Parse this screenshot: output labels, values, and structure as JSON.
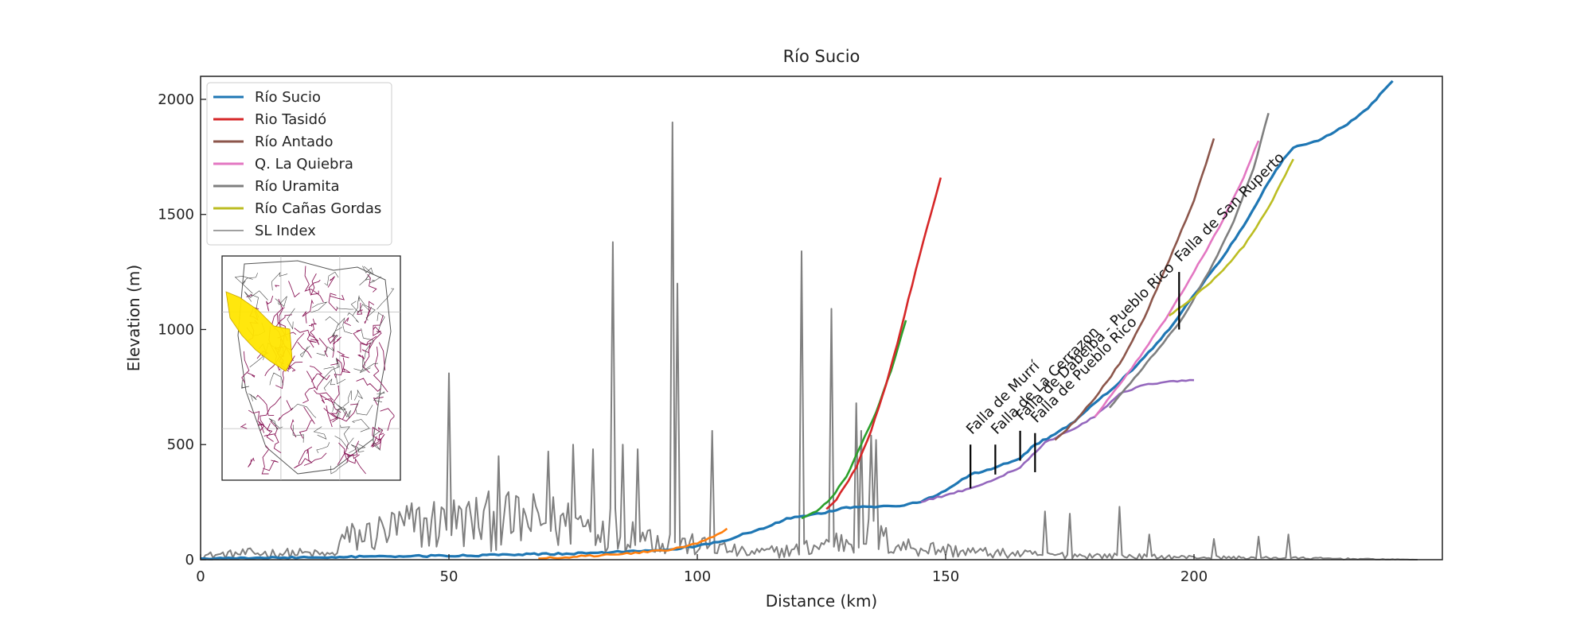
{
  "chart_data": {
    "type": "line",
    "title": "Río Sucio",
    "xlabel": "Distance (km)",
    "ylabel": "Elevation (m)",
    "xlim": [
      0,
      250
    ],
    "ylim": [
      0,
      2100
    ],
    "xticks": [
      0,
      50,
      100,
      150,
      200
    ],
    "yticks": [
      0,
      500,
      1000,
      1500,
      2000
    ],
    "xtick_labels": [
      "0",
      "50",
      "100",
      "150",
      "200"
    ],
    "ytick_labels": [
      "0",
      "500",
      "1000",
      "1500",
      "2000"
    ],
    "legend_position": "top-left",
    "grid": false,
    "legend": [
      {
        "label": "Río Sucio",
        "color": "#1f77b4"
      },
      {
        "label": "Rio Tasidó",
        "color": "#d62728"
      },
      {
        "label": "Río Antado",
        "color": "#8c564b"
      },
      {
        "label": "Q. La Quiebra",
        "color": "#e377c2"
      },
      {
        "label": "Río Uramita",
        "color": "#7f7f7f"
      },
      {
        "label": "Río Cañas Gordas",
        "color": "#bcbd22"
      },
      {
        "label": "SL Index",
        "color": "#808080"
      }
    ],
    "series": [
      {
        "name": "Río Sucio",
        "color": "#1f77b4",
        "width": 3.2,
        "x": [
          0,
          20,
          40,
          60,
          80,
          95,
          100,
          105,
          110,
          115,
          118,
          122,
          125,
          128,
          130,
          135,
          140,
          145,
          150,
          155,
          160,
          165,
          168,
          172,
          176,
          180,
          185,
          190,
          195,
          200,
          205,
          210,
          215,
          218,
          220,
          225,
          230,
          235,
          240
        ],
        "y": [
          5,
          10,
          15,
          20,
          30,
          45,
          60,
          80,
          115,
          150,
          180,
          190,
          200,
          215,
          228,
          230,
          232,
          250,
          300,
          370,
          400,
          440,
          500,
          545,
          600,
          680,
          770,
          880,
          1000,
          1150,
          1290,
          1450,
          1640,
          1740,
          1790,
          1820,
          1880,
          1960,
          2080
        ]
      },
      {
        "name": "orange tributary",
        "color": "#ff7f0e",
        "width": 2.6,
        "x": [
          68,
          75,
          85,
          95,
          100,
          104,
          106
        ],
        "y": [
          5,
          12,
          25,
          45,
          70,
          110,
          135
        ]
      },
      {
        "name": "green tributary",
        "color": "#2ca02c",
        "width": 2.6,
        "x": [
          121,
          124,
          127,
          130,
          133,
          136,
          139,
          142
        ],
        "y": [
          180,
          210,
          270,
          360,
          500,
          640,
          820,
          1040
        ]
      },
      {
        "name": "Rio Tasidó",
        "color": "#d62728",
        "width": 2.6,
        "x": [
          126,
          128,
          132,
          135,
          138,
          141,
          144,
          147,
          149
        ],
        "y": [
          220,
          260,
          400,
          560,
          760,
          1000,
          1260,
          1500,
          1660
        ]
      },
      {
        "name": "purple tributary",
        "color": "#9467bd",
        "width": 2.6,
        "x": [
          145,
          150,
          155,
          160,
          165,
          170,
          175,
          180,
          185,
          190,
          195,
          200
        ],
        "y": [
          250,
          280,
          310,
          350,
          400,
          510,
          560,
          620,
          720,
          760,
          775,
          780
        ]
      },
      {
        "name": "Río Antado",
        "color": "#8c564b",
        "width": 2.6,
        "x": [
          172,
          176,
          180,
          185,
          190,
          195,
          200,
          204
        ],
        "y": [
          520,
          600,
          700,
          850,
          1050,
          1300,
          1560,
          1830
        ]
      },
      {
        "name": "Q. La Quiebra",
        "color": "#e377c2",
        "width": 2.6,
        "x": [
          180,
          185,
          190,
          195,
          200,
          205,
          210,
          213
        ],
        "y": [
          620,
          760,
          910,
          1070,
          1250,
          1440,
          1660,
          1820
        ]
      },
      {
        "name": "Río Uramita",
        "color": "#7f7f7f",
        "width": 2.6,
        "x": [
          183,
          188,
          193,
          198,
          203,
          208,
          212,
          215
        ],
        "y": [
          660,
          790,
          920,
          1060,
          1250,
          1470,
          1700,
          1940
        ]
      },
      {
        "name": "Río Cañas Gordas",
        "color": "#bcbd22",
        "width": 2.6,
        "x": [
          195,
          200,
          205,
          210,
          215,
          220
        ],
        "y": [
          1060,
          1140,
          1240,
          1360,
          1530,
          1740
        ]
      }
    ],
    "sl_index": {
      "name": "SL Index",
      "color": "#808080",
      "base_points": [
        [
          0,
          25
        ],
        [
          10,
          40
        ],
        [
          20,
          40
        ],
        [
          27,
          30
        ],
        [
          28,
          120
        ],
        [
          35,
          160
        ],
        [
          42,
          210
        ],
        [
          50,
          230
        ],
        [
          60,
          240
        ],
        [
          70,
          230
        ],
        [
          80,
          220
        ],
        [
          90,
          140
        ],
        [
          96,
          100
        ],
        [
          105,
          70
        ],
        [
          110,
          40
        ],
        [
          120,
          60
        ],
        [
          130,
          120
        ],
        [
          135,
          160
        ],
        [
          140,
          90
        ],
        [
          150,
          60
        ],
        [
          160,
          40
        ],
        [
          170,
          30
        ],
        [
          180,
          25
        ],
        [
          190,
          20
        ],
        [
          200,
          15
        ],
        [
          220,
          10
        ],
        [
          245,
          0
        ]
      ],
      "peaks": [
        [
          50,
          810
        ],
        [
          60,
          450
        ],
        [
          70,
          470
        ],
        [
          75,
          500
        ],
        [
          79,
          480
        ],
        [
          83,
          1380
        ],
        [
          85,
          500
        ],
        [
          88,
          480
        ],
        [
          95,
          1900
        ],
        [
          96,
          1200
        ],
        [
          103,
          560
        ],
        [
          121,
          1340
        ],
        [
          127,
          1090
        ],
        [
          132,
          680
        ],
        [
          133,
          560
        ],
        [
          135,
          540
        ],
        [
          136,
          520
        ],
        [
          170,
          210
        ],
        [
          175,
          200
        ],
        [
          185,
          230
        ],
        [
          191,
          110
        ],
        [
          204,
          90
        ],
        [
          213,
          100
        ],
        [
          219,
          110
        ]
      ]
    },
    "fault_lines": [
      {
        "label": "Falla de Murrí",
        "x": 155,
        "y0": 310,
        "y1": 500
      },
      {
        "label": "Falla de La Cerrazon",
        "x": 160,
        "y0": 370,
        "y1": 500
      },
      {
        "label": "Falla de Dabeiba - Pueblo Rico",
        "x": 165,
        "y0": 430,
        "y1": 560
      },
      {
        "label": "Falla de Pueblo Rico",
        "x": 168,
        "y0": 380,
        "y1": 550
      },
      {
        "label": "Falla de San Ruperto",
        "x": 197,
        "y0": 1000,
        "y1": 1250
      }
    ],
    "inset": {
      "type": "drainage-map",
      "highlight_color": "#ffe600",
      "network_color": "#8b1a5a"
    }
  }
}
